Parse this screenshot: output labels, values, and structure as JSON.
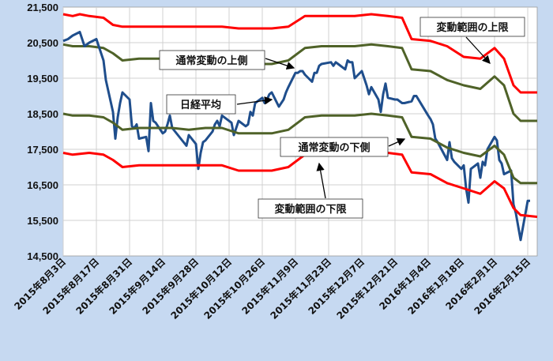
{
  "chart_data": {
    "type": "line",
    "title": "",
    "xlabel": "",
    "ylabel": "",
    "ylim": [
      14500,
      21500
    ],
    "yticks": [
      "14,500",
      "15,500",
      "16,500",
      "17,500",
      "18,500",
      "19,500",
      "20,500",
      "21,500"
    ],
    "ytick_values": [
      14500,
      15500,
      16500,
      17500,
      18500,
      19500,
      20500,
      21500
    ],
    "xlim": [
      "2015-08-03",
      "2016-02-19"
    ],
    "xticks": [
      "2015年8月3日",
      "2015年8月17日",
      "2015年8月31日",
      "2015年9月14日",
      "2015年9月28日",
      "2015年10月12日",
      "2015年10月26日",
      "2015年11月9日",
      "2015年11月23日",
      "2015年12月7日",
      "2015年12月21日",
      "2016年1月4日",
      "2016年1月18日",
      "2016年2月1日",
      "2016年2月15日"
    ],
    "xtick_dates": [
      "2015-08-03",
      "2015-08-17",
      "2015-08-31",
      "2015-09-14",
      "2015-09-28",
      "2015-10-12",
      "2015-10-26",
      "2015-11-09",
      "2015-11-23",
      "2015-12-07",
      "2015-12-21",
      "2016-01-04",
      "2016-01-18",
      "2016-02-01",
      "2016-02-15"
    ],
    "grid": true,
    "legend": "none",
    "annotations": [
      {
        "label": "変動範囲の上限",
        "series": "upper_limit"
      },
      {
        "label": "通常変動の上側",
        "series": "upper_normal"
      },
      {
        "label": "日経平均",
        "series": "nikkei"
      },
      {
        "label": "通常変動の下側",
        "series": "lower_normal"
      },
      {
        "label": "変動範囲の下限",
        "series": "lower_limit"
      }
    ],
    "series": [
      {
        "id": "upper_limit",
        "color": "#ff0000",
        "points": [
          [
            "2015-08-03",
            21300
          ],
          [
            "2015-08-07",
            21250
          ],
          [
            "2015-08-10",
            21300
          ],
          [
            "2015-08-14",
            21250
          ],
          [
            "2015-08-20",
            21200
          ],
          [
            "2015-08-24",
            21000
          ],
          [
            "2015-08-28",
            20950
          ],
          [
            "2015-09-04",
            20950
          ],
          [
            "2015-09-10",
            20950
          ],
          [
            "2015-09-18",
            20950
          ],
          [
            "2015-09-25",
            20950
          ],
          [
            "2015-10-02",
            20950
          ],
          [
            "2015-10-09",
            20950
          ],
          [
            "2015-10-16",
            20900
          ],
          [
            "2015-10-23",
            20900
          ],
          [
            "2015-10-30",
            20900
          ],
          [
            "2015-11-06",
            20950
          ],
          [
            "2015-11-13",
            21250
          ],
          [
            "2015-11-20",
            21250
          ],
          [
            "2015-11-27",
            21250
          ],
          [
            "2015-12-04",
            21250
          ],
          [
            "2015-12-11",
            21300
          ],
          [
            "2015-12-18",
            21250
          ],
          [
            "2015-12-24",
            21200
          ],
          [
            "2015-12-28",
            20600
          ],
          [
            "2016-01-05",
            20550
          ],
          [
            "2016-01-12",
            20400
          ],
          [
            "2016-01-19",
            20100
          ],
          [
            "2016-01-26",
            20050
          ],
          [
            "2016-02-01",
            20350
          ],
          [
            "2016-02-05",
            20050
          ],
          [
            "2016-02-09",
            19300
          ],
          [
            "2016-02-12",
            19100
          ],
          [
            "2016-02-19",
            19100
          ]
        ]
      },
      {
        "id": "upper_normal",
        "color": "#4f6228",
        "points": [
          [
            "2015-08-03",
            20450
          ],
          [
            "2015-08-07",
            20400
          ],
          [
            "2015-08-14",
            20400
          ],
          [
            "2015-08-20",
            20350
          ],
          [
            "2015-08-24",
            20200
          ],
          [
            "2015-08-28",
            20000
          ],
          [
            "2015-09-04",
            20050
          ],
          [
            "2015-09-10",
            20050
          ],
          [
            "2015-09-18",
            20050
          ],
          [
            "2015-09-25",
            20000
          ],
          [
            "2015-10-02",
            20050
          ],
          [
            "2015-10-09",
            20050
          ],
          [
            "2015-10-16",
            19950
          ],
          [
            "2015-10-23",
            19900
          ],
          [
            "2015-10-30",
            19900
          ],
          [
            "2015-11-06",
            20000
          ],
          [
            "2015-11-13",
            20350
          ],
          [
            "2015-11-20",
            20400
          ],
          [
            "2015-11-27",
            20400
          ],
          [
            "2015-12-04",
            20400
          ],
          [
            "2015-12-11",
            20450
          ],
          [
            "2015-12-18",
            20400
          ],
          [
            "2015-12-24",
            20350
          ],
          [
            "2015-12-28",
            19750
          ],
          [
            "2016-01-05",
            19700
          ],
          [
            "2016-01-12",
            19450
          ],
          [
            "2016-01-19",
            19300
          ],
          [
            "2016-01-26",
            19200
          ],
          [
            "2016-02-01",
            19550
          ],
          [
            "2016-02-05",
            19300
          ],
          [
            "2016-02-09",
            18500
          ],
          [
            "2016-02-12",
            18300
          ],
          [
            "2016-02-19",
            18300
          ]
        ]
      },
      {
        "id": "nikkei",
        "color": "#1f4e8c",
        "points": [
          [
            "2015-08-03",
            20550
          ],
          [
            "2015-08-05",
            20600
          ],
          [
            "2015-08-07",
            20700
          ],
          [
            "2015-08-10",
            20800
          ],
          [
            "2015-08-12",
            20400
          ],
          [
            "2015-08-14",
            20500
          ],
          [
            "2015-08-17",
            20600
          ],
          [
            "2015-08-19",
            20200
          ],
          [
            "2015-08-20",
            20000
          ],
          [
            "2015-08-21",
            19450
          ],
          [
            "2015-08-24",
            18550
          ],
          [
            "2015-08-25",
            17800
          ],
          [
            "2015-08-26",
            18400
          ],
          [
            "2015-08-27",
            18800
          ],
          [
            "2015-08-28",
            19100
          ],
          [
            "2015-08-31",
            18900
          ],
          [
            "2015-09-01",
            18150
          ],
          [
            "2015-09-02",
            18100
          ],
          [
            "2015-09-03",
            18200
          ],
          [
            "2015-09-04",
            17800
          ],
          [
            "2015-09-07",
            17850
          ],
          [
            "2015-09-08",
            17450
          ],
          [
            "2015-09-09",
            18800
          ],
          [
            "2015-09-10",
            18300
          ],
          [
            "2015-09-11",
            18250
          ],
          [
            "2015-09-14",
            17950
          ],
          [
            "2015-09-15",
            18000
          ],
          [
            "2015-09-16",
            18200
          ],
          [
            "2015-09-17",
            18450
          ],
          [
            "2015-09-18",
            18100
          ],
          [
            "2015-09-24",
            17600
          ],
          [
            "2015-09-25",
            17900
          ],
          [
            "2015-09-28",
            17650
          ],
          [
            "2015-09-29",
            16950
          ],
          [
            "2015-09-30",
            17400
          ],
          [
            "2015-10-01",
            17700
          ],
          [
            "2015-10-02",
            17750
          ],
          [
            "2015-10-05",
            18000
          ],
          [
            "2015-10-06",
            18200
          ],
          [
            "2015-10-07",
            18300
          ],
          [
            "2015-10-08",
            18150
          ],
          [
            "2015-10-09",
            18450
          ],
          [
            "2015-10-13",
            18250
          ],
          [
            "2015-10-14",
            17900
          ],
          [
            "2015-10-15",
            18100
          ],
          [
            "2015-10-16",
            18300
          ],
          [
            "2015-10-19",
            18150
          ],
          [
            "2015-10-20",
            18200
          ],
          [
            "2015-10-21",
            18550
          ],
          [
            "2015-10-22",
            18450
          ],
          [
            "2015-10-23",
            18800
          ],
          [
            "2015-10-26",
            18950
          ],
          [
            "2015-10-27",
            18800
          ],
          [
            "2015-10-28",
            18900
          ],
          [
            "2015-10-29",
            19050
          ],
          [
            "2015-10-30",
            19100
          ],
          [
            "2015-11-02",
            18700
          ],
          [
            "2015-11-04",
            18900
          ],
          [
            "2015-11-05",
            19100
          ],
          [
            "2015-11-06",
            19250
          ],
          [
            "2015-11-09",
            19650
          ],
          [
            "2015-11-10",
            19650
          ],
          [
            "2015-11-11",
            19700
          ],
          [
            "2015-11-12",
            19700
          ],
          [
            "2015-11-13",
            19600
          ],
          [
            "2015-11-16",
            19400
          ],
          [
            "2015-11-17",
            19650
          ],
          [
            "2015-11-18",
            19650
          ],
          [
            "2015-11-19",
            19850
          ],
          [
            "2015-11-20",
            19900
          ],
          [
            "2015-11-24",
            19950
          ],
          [
            "2015-11-25",
            19850
          ],
          [
            "2015-11-26",
            19950
          ],
          [
            "2015-11-27",
            19900
          ],
          [
            "2015-11-30",
            19750
          ],
          [
            "2015-12-01",
            20000
          ],
          [
            "2015-12-02",
            19950
          ],
          [
            "2015-12-03",
            19950
          ],
          [
            "2015-12-04",
            19500
          ],
          [
            "2015-12-07",
            19700
          ],
          [
            "2015-12-08",
            19500
          ],
          [
            "2015-12-09",
            19300
          ],
          [
            "2015-12-10",
            19050
          ],
          [
            "2015-12-11",
            19250
          ],
          [
            "2015-12-14",
            18900
          ],
          [
            "2015-12-15",
            18550
          ],
          [
            "2015-12-16",
            19050
          ],
          [
            "2015-12-17",
            19350
          ],
          [
            "2015-12-18",
            18950
          ],
          [
            "2015-12-21",
            18900
          ],
          [
            "2015-12-22",
            18900
          ],
          [
            "2015-12-24",
            18800
          ],
          [
            "2015-12-25",
            18800
          ],
          [
            "2015-12-28",
            18850
          ],
          [
            "2015-12-29",
            19000
          ],
          [
            "2015-12-30",
            19000
          ],
          [
            "2016-01-04",
            18450
          ],
          [
            "2016-01-05",
            18350
          ],
          [
            "2016-01-06",
            18200
          ],
          [
            "2016-01-07",
            17800
          ],
          [
            "2016-01-08",
            17700
          ],
          [
            "2016-01-12",
            17200
          ],
          [
            "2016-01-13",
            17700
          ],
          [
            "2016-01-14",
            17250
          ],
          [
            "2016-01-15",
            17150
          ],
          [
            "2016-01-18",
            16950
          ],
          [
            "2016-01-19",
            17050
          ],
          [
            "2016-01-20",
            16400
          ],
          [
            "2016-01-21",
            16000
          ],
          [
            "2016-01-22",
            16950
          ],
          [
            "2016-01-25",
            17100
          ],
          [
            "2016-01-26",
            16700
          ],
          [
            "2016-01-27",
            17150
          ],
          [
            "2016-01-28",
            17050
          ],
          [
            "2016-01-29",
            17500
          ],
          [
            "2016-02-01",
            17850
          ],
          [
            "2016-02-02",
            17750
          ],
          [
            "2016-02-03",
            17200
          ],
          [
            "2016-02-04",
            17100
          ],
          [
            "2016-02-05",
            16800
          ],
          [
            "2016-02-08",
            16900
          ],
          [
            "2016-02-09",
            15950
          ],
          [
            "2016-02-10",
            15700
          ],
          [
            "2016-02-12",
            14950
          ],
          [
            "2016-02-15",
            16050
          ],
          [
            "2016-02-16",
            16050
          ]
        ]
      },
      {
        "id": "lower_normal",
        "color": "#4f6228",
        "points": [
          [
            "2015-08-03",
            18500
          ],
          [
            "2015-08-07",
            18450
          ],
          [
            "2015-08-14",
            18450
          ],
          [
            "2015-08-20",
            18400
          ],
          [
            "2015-08-24",
            18250
          ],
          [
            "2015-08-28",
            18050
          ],
          [
            "2015-09-04",
            18100
          ],
          [
            "2015-09-10",
            18100
          ],
          [
            "2015-09-18",
            18100
          ],
          [
            "2015-09-25",
            18050
          ],
          [
            "2015-10-02",
            18100
          ],
          [
            "2015-10-09",
            18100
          ],
          [
            "2015-10-16",
            17950
          ],
          [
            "2015-10-23",
            17950
          ],
          [
            "2015-10-30",
            17950
          ],
          [
            "2015-11-06",
            18050
          ],
          [
            "2015-11-13",
            18400
          ],
          [
            "2015-11-20",
            18450
          ],
          [
            "2015-11-27",
            18450
          ],
          [
            "2015-12-04",
            18450
          ],
          [
            "2015-12-11",
            18500
          ],
          [
            "2015-12-18",
            18450
          ],
          [
            "2015-12-24",
            18400
          ],
          [
            "2015-12-28",
            17850
          ],
          [
            "2016-01-05",
            17800
          ],
          [
            "2016-01-12",
            17550
          ],
          [
            "2016-01-19",
            17400
          ],
          [
            "2016-01-26",
            17300
          ],
          [
            "2016-02-01",
            17600
          ],
          [
            "2016-02-05",
            17350
          ],
          [
            "2016-02-09",
            16700
          ],
          [
            "2016-02-12",
            16550
          ],
          [
            "2016-02-19",
            16550
          ]
        ]
      },
      {
        "id": "lower_limit",
        "color": "#ff0000",
        "points": [
          [
            "2015-08-03",
            17400
          ],
          [
            "2015-08-07",
            17350
          ],
          [
            "2015-08-14",
            17400
          ],
          [
            "2015-08-20",
            17350
          ],
          [
            "2015-08-24",
            17200
          ],
          [
            "2015-08-28",
            17000
          ],
          [
            "2015-09-04",
            17050
          ],
          [
            "2015-09-10",
            17050
          ],
          [
            "2015-09-18",
            17050
          ],
          [
            "2015-09-25",
            17050
          ],
          [
            "2015-10-02",
            17050
          ],
          [
            "2015-10-09",
            17050
          ],
          [
            "2015-10-16",
            16900
          ],
          [
            "2015-10-23",
            16900
          ],
          [
            "2015-10-30",
            16900
          ],
          [
            "2015-11-06",
            17000
          ],
          [
            "2015-11-13",
            17350
          ],
          [
            "2015-11-20",
            17400
          ],
          [
            "2015-11-27",
            17400
          ],
          [
            "2015-12-04",
            17400
          ],
          [
            "2015-12-11",
            17450
          ],
          [
            "2015-12-18",
            17400
          ],
          [
            "2015-12-24",
            17350
          ],
          [
            "2015-12-28",
            16850
          ],
          [
            "2016-01-05",
            16800
          ],
          [
            "2016-01-12",
            16550
          ],
          [
            "2016-01-19",
            16400
          ],
          [
            "2016-01-26",
            16250
          ],
          [
            "2016-02-01",
            16600
          ],
          [
            "2016-02-05",
            16400
          ],
          [
            "2016-02-09",
            15850
          ],
          [
            "2016-02-12",
            15650
          ],
          [
            "2016-02-19",
            15600
          ]
        ]
      }
    ]
  }
}
